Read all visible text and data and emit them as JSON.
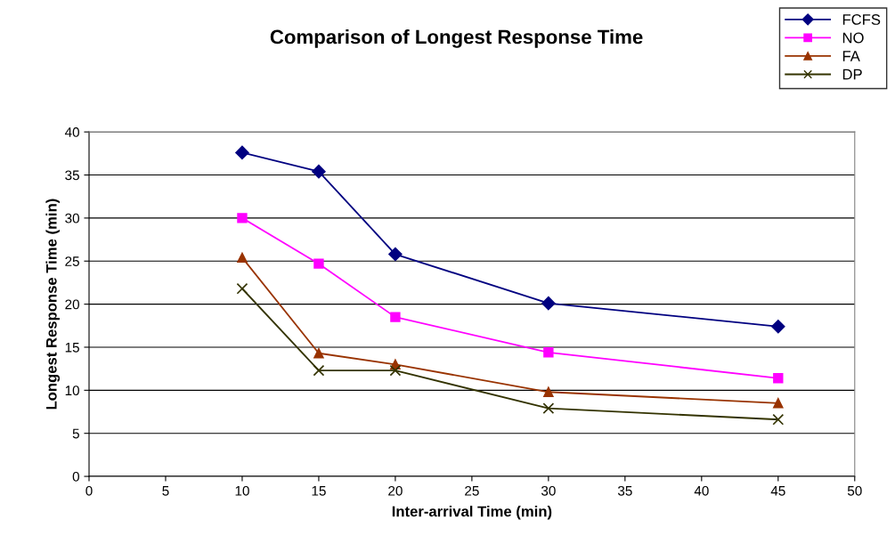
{
  "chart_data": {
    "type": "line",
    "title": "Comparison of Longest Response Time",
    "xlabel": "Inter-arrival Time (min)",
    "ylabel": "Longest Response Time (min)",
    "x": [
      10,
      15,
      20,
      30,
      45
    ],
    "series": [
      {
        "name": "FCFS",
        "color": "#000080",
        "marker": "diamond",
        "values": [
          37.6,
          35.4,
          25.8,
          20.1,
          17.4
        ]
      },
      {
        "name": "NO",
        "color": "#ff00ff",
        "marker": "square",
        "values": [
          30.0,
          24.7,
          18.5,
          14.4,
          11.4
        ]
      },
      {
        "name": "FA",
        "color": "#993300",
        "marker": "triangle",
        "values": [
          25.4,
          14.3,
          13.0,
          9.8,
          8.5
        ]
      },
      {
        "name": "DP",
        "color": "#333300",
        "marker": "cross",
        "values": [
          21.8,
          12.3,
          12.3,
          7.9,
          6.6
        ]
      }
    ],
    "xlim": [
      0,
      50
    ],
    "xticks": [
      0,
      5,
      10,
      15,
      20,
      25,
      30,
      35,
      40,
      45,
      50
    ],
    "ylim": [
      0,
      40
    ],
    "yticks": [
      0,
      5,
      10,
      15,
      20,
      25,
      30,
      35,
      40
    ],
    "grid": "y",
    "legend": "top right",
    "line_style": "solid"
  }
}
